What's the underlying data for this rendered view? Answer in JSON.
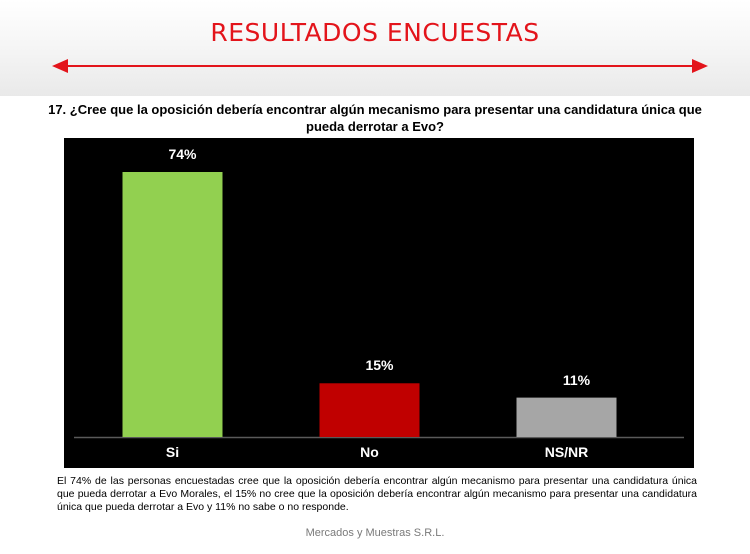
{
  "header": {
    "title": "RESULTADOS ENCUESTAS",
    "accent_color": "#e3141b"
  },
  "question": "17. ¿Cree que la oposición debería encontrar algún mecanismo para presentar una candidatura única que pueda derrotar a Evo?",
  "chart_data": {
    "type": "bar",
    "categories": [
      "Si",
      "No",
      "NS/NR"
    ],
    "values": [
      74,
      15,
      11
    ],
    "data_labels": [
      "74%",
      "15%",
      "11%"
    ],
    "colors": [
      "#92d050",
      "#c00000",
      "#a6a6a6"
    ],
    "background": "#000000",
    "ylim": [
      0,
      74
    ],
    "grid": false,
    "legend": "none"
  },
  "description": "El 74% de las personas encuestadas cree que la oposición debería encontrar algún mecanismo para presentar una candidatura única que pueda derrotar a Evo Morales, el 15% no cree que la oposición debería encontrar algún mecanismo para presentar una candidatura única que pueda derrotar a Evo y 11% no sabe o no responde.",
  "footer": "Mercados y Muestras S.R.L."
}
